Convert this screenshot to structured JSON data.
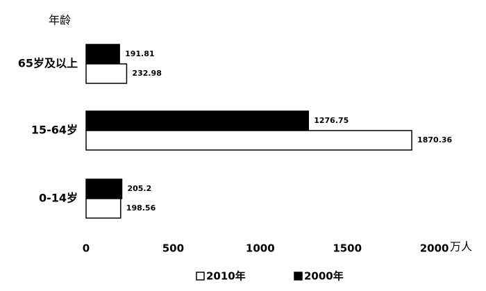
{
  "chart_data": {
    "type": "hbar",
    "y_label": "年龄",
    "x_label": "万人",
    "categories": [
      "65岁及以上",
      "15-64岁",
      "0-14岁"
    ],
    "series": [
      {
        "name": "2010年",
        "color": "#ffffff",
        "values": [
          232.98,
          1870.36,
          198.56
        ]
      },
      {
        "name": "2000年",
        "color": "#000000",
        "values": [
          191.81,
          1276.75,
          205.2
        ]
      }
    ],
    "xlim": [
      0,
      2000
    ],
    "xticks": [
      0,
      500,
      1000,
      1500,
      2000
    ],
    "grid": false,
    "legend": "bottom"
  }
}
